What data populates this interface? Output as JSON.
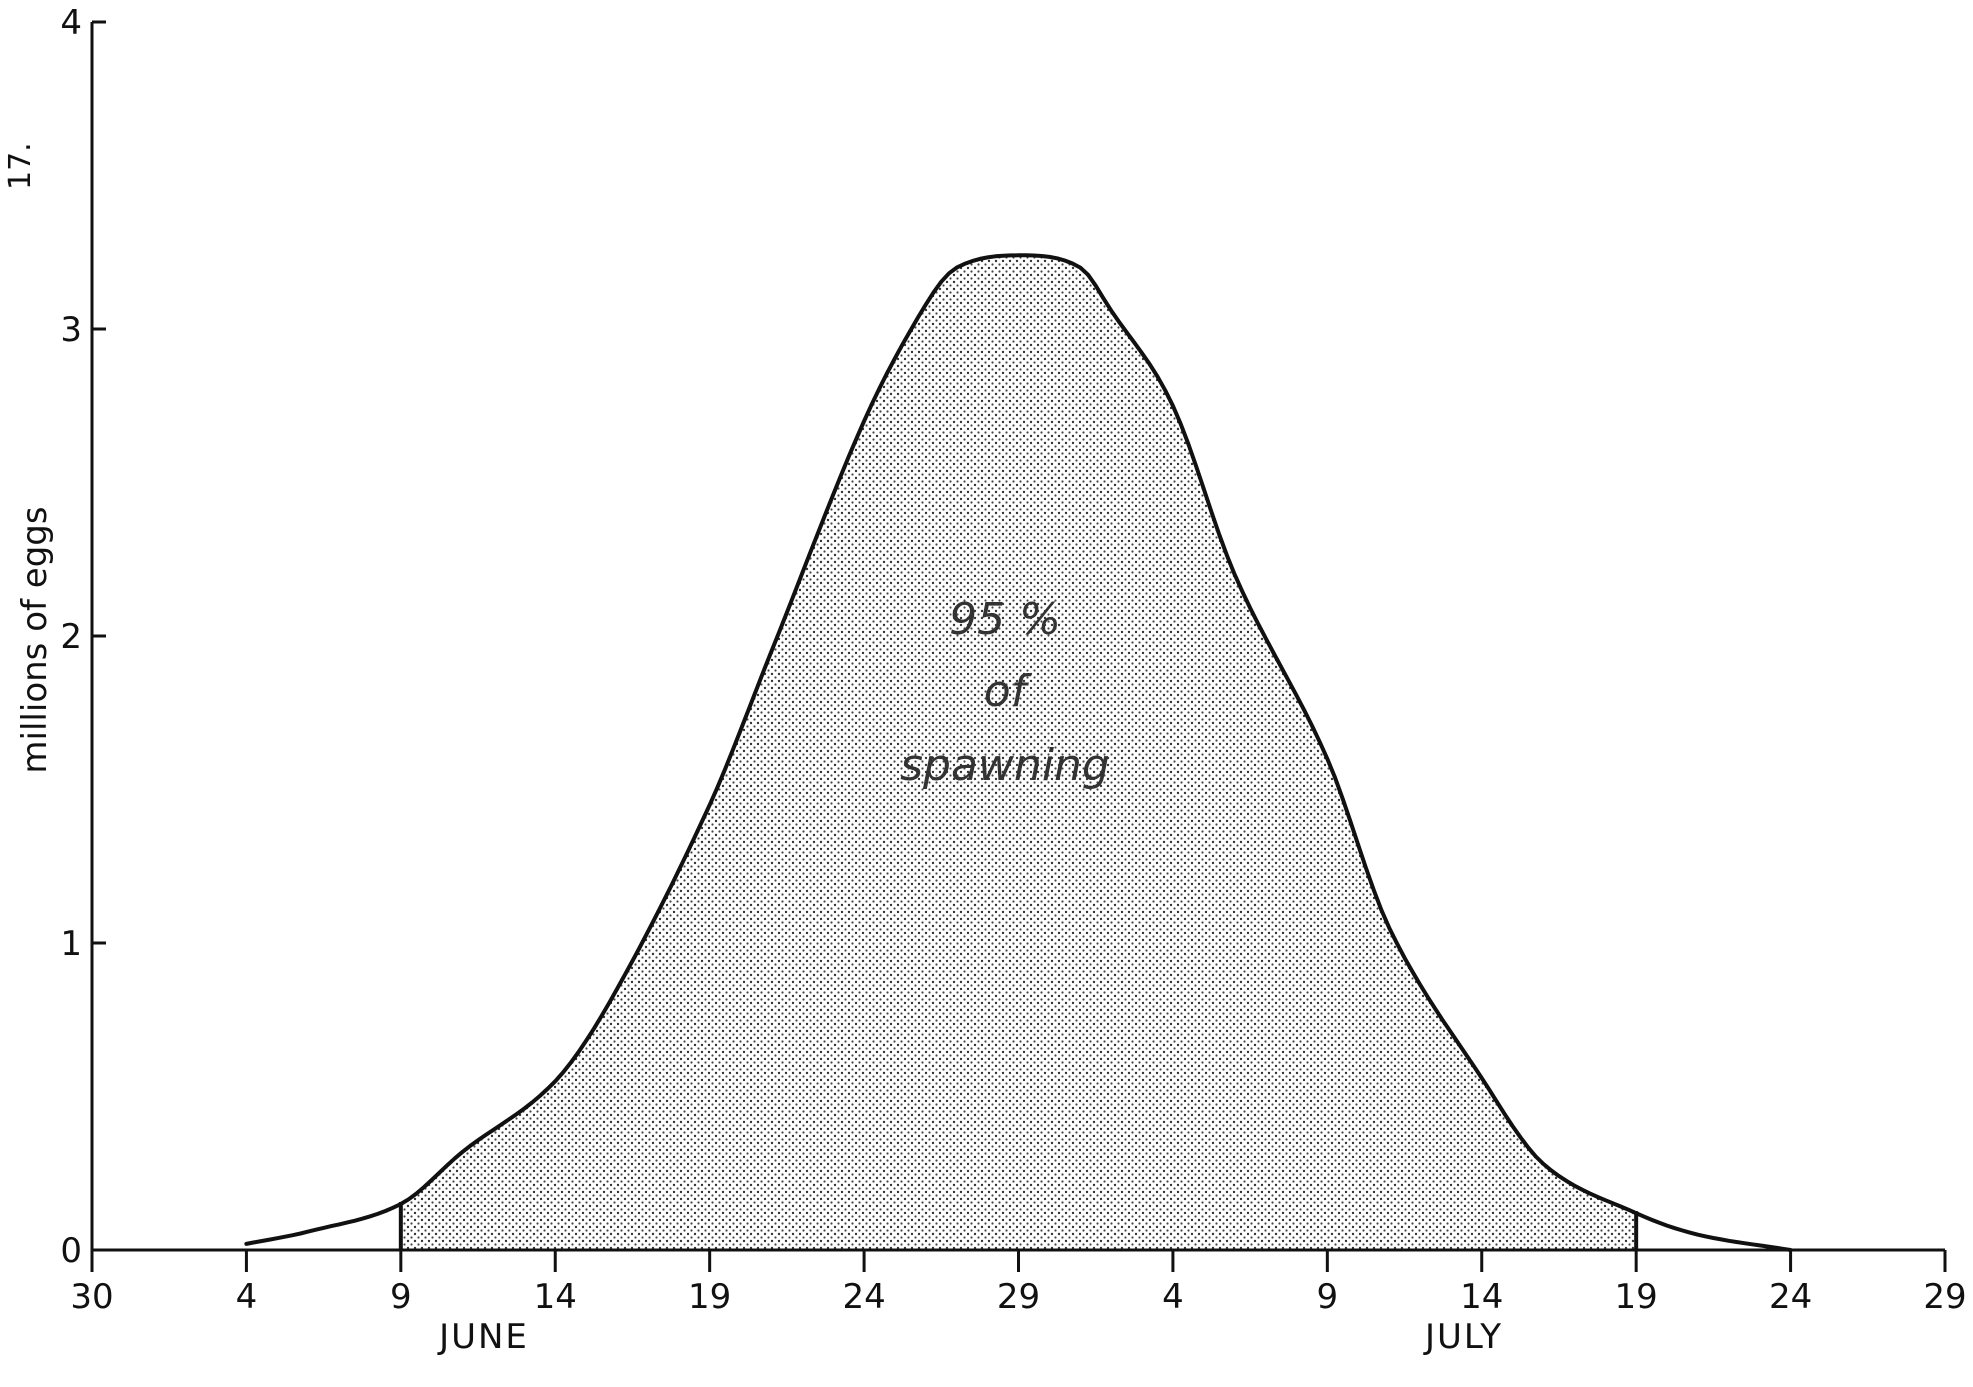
{
  "page_number": "17.",
  "chart_data": {
    "type": "area",
    "title": "",
    "xlabel": "",
    "ylabel": "millions of eggs",
    "ylim": [
      0,
      4
    ],
    "yticks": [
      0,
      1,
      2,
      3,
      4
    ],
    "xlim": [
      "May 30",
      "July 29"
    ],
    "x_tick_labels": [
      "30",
      "4",
      "9",
      "14",
      "19",
      "24",
      "29",
      "4",
      "9",
      "14",
      "19",
      "24",
      "29"
    ],
    "month_labels": [
      "JUNE",
      "JULY"
    ],
    "annotation": [
      "95 %",
      "of",
      "spawning"
    ],
    "shaded_region": {
      "from": "June 9",
      "to": "July 19",
      "fraction": "95%"
    },
    "series": [
      {
        "x": [
          "June 4",
          "June 6",
          "June 9",
          "June 11",
          "June 14",
          "June 16",
          "June 19",
          "June 21",
          "June 24",
          "June 26",
          "June 27",
          "June 29",
          "July 1",
          "July 2",
          "July 4",
          "July 6",
          "July 9",
          "July 11",
          "July 14",
          "July 16",
          "July 19",
          "July 21",
          "July 24"
        ],
        "values": [
          0.02,
          0.06,
          0.15,
          0.32,
          0.55,
          0.85,
          1.45,
          1.95,
          2.7,
          3.08,
          3.2,
          3.24,
          3.2,
          3.06,
          2.75,
          2.2,
          1.6,
          1.05,
          0.56,
          0.28,
          0.12,
          0.05,
          0.0
        ]
      }
    ],
    "colors": {
      "line": "#111111",
      "fill_dots": "#333333",
      "background": "#ffffff"
    }
  }
}
